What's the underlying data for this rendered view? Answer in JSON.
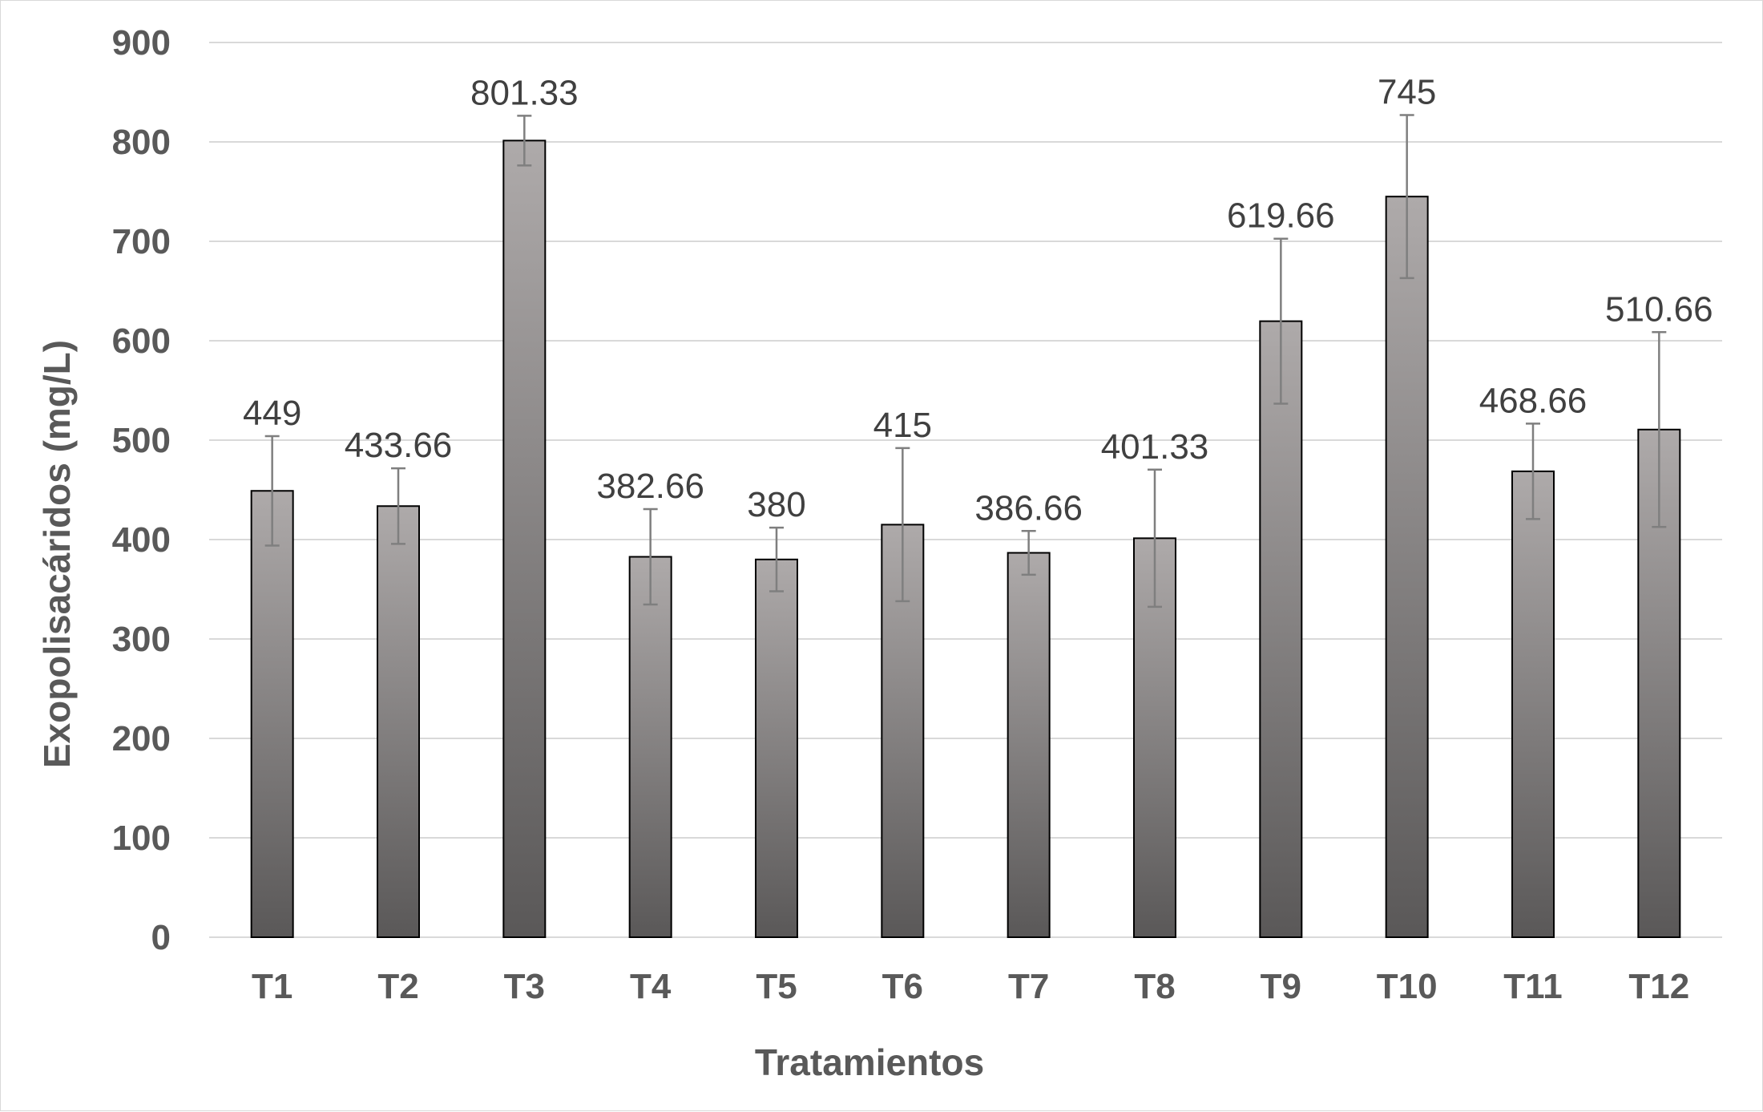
{
  "chart_data": {
    "type": "bar",
    "title": "",
    "xlabel": "Tratamientos",
    "ylabel": "Exopolisacáridos (mg/L)",
    "ylim": [
      0,
      900
    ],
    "yticks": [
      0,
      100,
      200,
      300,
      400,
      500,
      600,
      700,
      800,
      900
    ],
    "grid": true,
    "legend": "none",
    "categories": [
      "T1",
      "T2",
      "T3",
      "T4",
      "T5",
      "T6",
      "T7",
      "T8",
      "T9",
      "T10",
      "T11",
      "T12"
    ],
    "values": [
      449,
      433.66,
      801.33,
      382.66,
      380,
      415,
      386.66,
      401.33,
      619.66,
      745,
      468.66,
      510.66
    ],
    "data_labels": [
      "449",
      "433.66",
      "801.33",
      "382.66",
      "380",
      "415",
      "386.66",
      "401.33",
      "619.66",
      "745",
      "468.66",
      "510.66"
    ],
    "error": [
      55,
      38,
      25,
      48,
      32,
      77,
      22,
      69,
      83,
      82,
      48,
      98
    ],
    "colors": {
      "bar_top": "#aeaaaa",
      "bar_bottom": "#5a5858",
      "bar_border": "#000000",
      "error_bar": "#7f7f7f",
      "grid": "#d9d9d9",
      "text": "#595959"
    }
  }
}
